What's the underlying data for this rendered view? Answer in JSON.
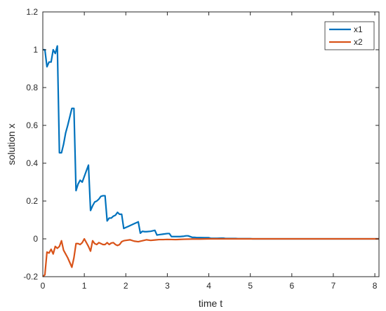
{
  "chart_data": {
    "type": "line",
    "xlabel": "time t",
    "ylabel": "solution x",
    "xlim": [
      0,
      8.1
    ],
    "ylim": [
      -0.2,
      1.2
    ],
    "xticks": [
      "0",
      "1",
      "2",
      "3",
      "4",
      "5",
      "6",
      "7",
      "8"
    ],
    "yticks": [
      "-0.2",
      "0",
      "0.2",
      "0.4",
      "0.6",
      "0.8",
      "1",
      "1.2"
    ],
    "grid": false,
    "legend_position": "top-right",
    "series": [
      {
        "name": "x1",
        "color": "#0072BD",
        "x": [
          0,
          0.05,
          0.1,
          0.15,
          0.2,
          0.25,
          0.3,
          0.35,
          0.4,
          0.45,
          0.5,
          0.55,
          0.6,
          0.7,
          0.75,
          0.8,
          0.85,
          0.9,
          0.95,
          1.0,
          1.05,
          1.1,
          1.15,
          1.2,
          1.25,
          1.3,
          1.35,
          1.4,
          1.45,
          1.5,
          1.55,
          1.6,
          1.65,
          1.7,
          1.75,
          1.8,
          1.85,
          1.9,
          1.95,
          2.0,
          2.05,
          2.1,
          2.2,
          2.3,
          2.35,
          2.4,
          2.45,
          2.5,
          2.6,
          2.7,
          2.75,
          2.8,
          2.9,
          3.0,
          3.05,
          3.1,
          3.3,
          3.4,
          3.45,
          3.5,
          3.6,
          3.65,
          3.7,
          3.9,
          4.0,
          4.05,
          4.2,
          4.3,
          4.35,
          4.4,
          4.6,
          4.65,
          4.7,
          4.9,
          5.0,
          5.05,
          5.2,
          5.5,
          6.0,
          6.5,
          7.0,
          7.5,
          8.0,
          8.1
        ],
        "y": [
          1.0,
          1.0,
          0.91,
          0.935,
          0.935,
          1.0,
          0.98,
          1.02,
          0.455,
          0.455,
          0.5,
          0.56,
          0.6,
          0.69,
          0.69,
          0.255,
          0.29,
          0.31,
          0.3,
          0.33,
          0.36,
          0.39,
          0.15,
          0.175,
          0.195,
          0.2,
          0.21,
          0.225,
          0.228,
          0.228,
          0.095,
          0.11,
          0.11,
          0.12,
          0.125,
          0.14,
          0.13,
          0.13,
          0.055,
          0.06,
          0.065,
          0.07,
          0.08,
          0.09,
          0.03,
          0.04,
          0.038,
          0.038,
          0.04,
          0.045,
          0.02,
          0.022,
          0.025,
          0.028,
          0.028,
          0.012,
          0.012,
          0.014,
          0.016,
          0.016,
          0.008,
          0.008,
          0.007,
          0.006,
          0.006,
          0.003,
          0.003,
          0.004,
          0.004,
          0.002,
          0.002,
          0.002,
          0.001,
          0.001,
          0.001,
          0.0,
          0.0,
          0.0,
          0.0,
          0.0,
          0.0,
          0.0,
          0.0,
          0.0
        ]
      },
      {
        "name": "x2",
        "color": "#D95319",
        "x": [
          0,
          0.05,
          0.1,
          0.15,
          0.2,
          0.25,
          0.3,
          0.35,
          0.4,
          0.45,
          0.5,
          0.6,
          0.7,
          0.75,
          0.8,
          0.85,
          0.9,
          0.95,
          1.0,
          1.05,
          1.1,
          1.15,
          1.2,
          1.25,
          1.3,
          1.35,
          1.4,
          1.45,
          1.5,
          1.55,
          1.6,
          1.65,
          1.7,
          1.75,
          1.8,
          1.85,
          1.9,
          1.95,
          2.0,
          2.1,
          2.2,
          2.3,
          2.4,
          2.5,
          2.6,
          2.7,
          2.8,
          2.9,
          3.0,
          3.2,
          3.4,
          3.6,
          3.8,
          4.0,
          4.5,
          5.0,
          6.0,
          7.0,
          8.0,
          8.1
        ],
        "y": [
          -0.2,
          -0.19,
          -0.07,
          -0.075,
          -0.055,
          -0.08,
          -0.04,
          -0.05,
          -0.04,
          -0.01,
          -0.06,
          -0.1,
          -0.15,
          -0.1,
          -0.025,
          -0.025,
          -0.03,
          -0.02,
          0.0,
          -0.02,
          -0.04,
          -0.065,
          -0.01,
          -0.025,
          -0.03,
          -0.02,
          -0.025,
          -0.03,
          -0.03,
          -0.02,
          -0.03,
          -0.022,
          -0.02,
          -0.03,
          -0.035,
          -0.03,
          -0.015,
          -0.01,
          -0.008,
          -0.005,
          -0.012,
          -0.015,
          -0.01,
          -0.005,
          -0.008,
          -0.006,
          -0.004,
          -0.004,
          -0.003,
          -0.004,
          -0.002,
          -0.001,
          -0.001,
          0.0,
          0.0,
          0.0,
          0.0,
          0.0,
          0.0,
          0.0
        ]
      }
    ]
  }
}
